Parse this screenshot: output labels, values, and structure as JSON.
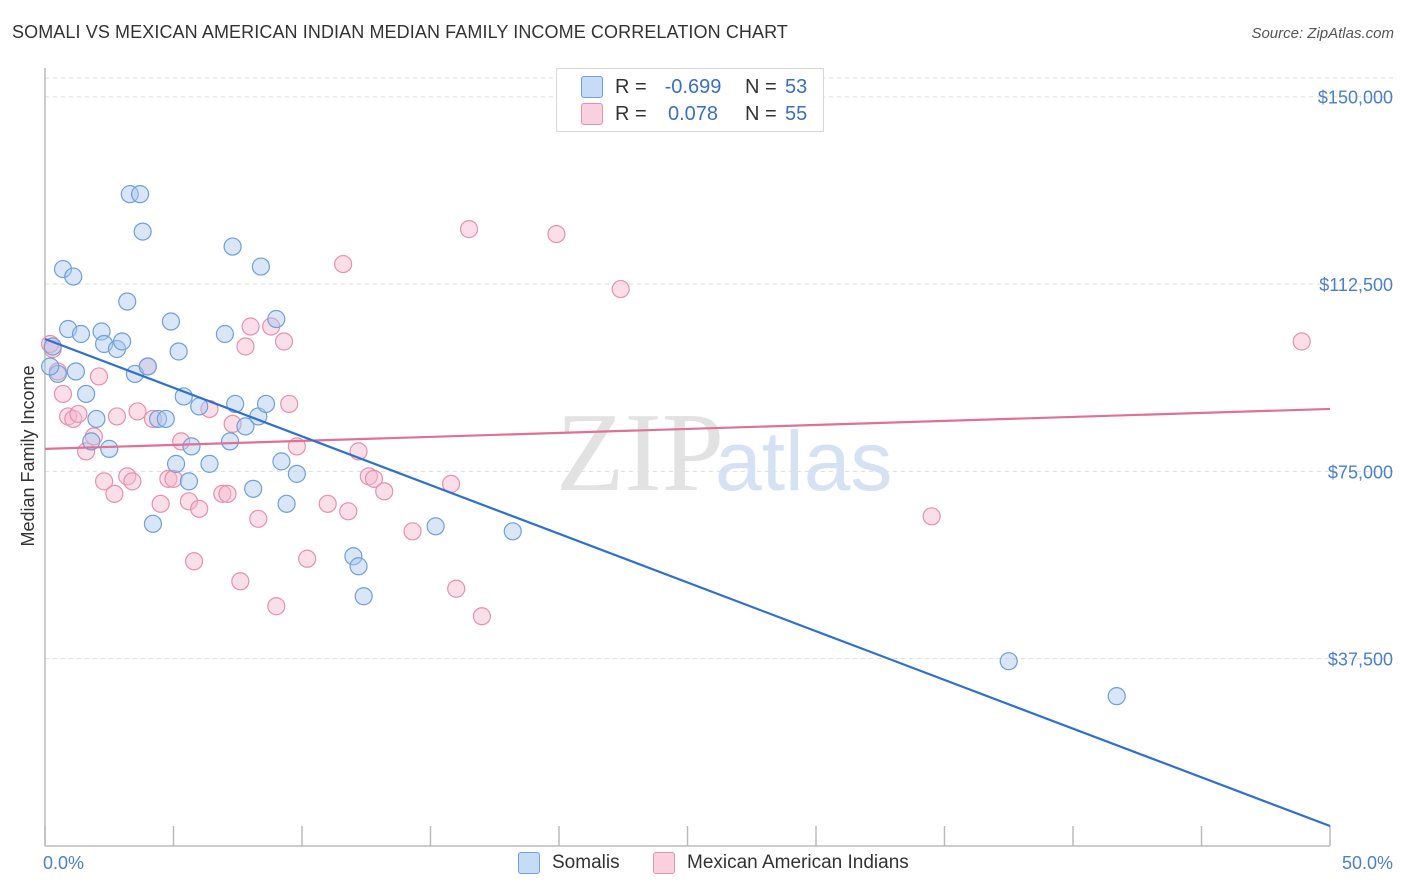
{
  "title": "SOMALI VS MEXICAN AMERICAN INDIAN MEDIAN FAMILY INCOME CORRELATION CHART",
  "source": "Source: ZipAtlas.com",
  "watermark": {
    "zip": "ZIP",
    "atlas": "atlas"
  },
  "legend": {
    "rows": [
      {
        "r_label": "R =",
        "r_value": "-0.699",
        "n_label": "N =",
        "n_value": "53"
      },
      {
        "r_label": "R =",
        "r_value": "0.078",
        "n_label": "N =",
        "n_value": "55"
      }
    ]
  },
  "bottom_legend": {
    "series1": "Somalis",
    "series2": "Mexican American Indians"
  },
  "colors": {
    "somali_fill": "#a8c8f0",
    "somali_stroke": "#6f9fdc",
    "somali_line": "#2f6fd0",
    "mexican_fill": "#f5b8cb",
    "mexican_stroke": "#e890ab",
    "mexican_line": "#e07095",
    "tick_text": "#4a7fd0",
    "grid": "#dddddd"
  },
  "chart_data": {
    "type": "scatter",
    "title": "SOMALI VS MEXICAN AMERICAN INDIAN MEDIAN FAMILY INCOME CORRELATION CHART",
    "xlabel": "",
    "ylabel": "Median Family Income",
    "xlim": [
      0,
      50
    ],
    "ylim": [
      0,
      153750
    ],
    "x_tick_labels": [
      "0.0%",
      "50.0%"
    ],
    "y_ticks": [
      37500,
      75000,
      112500,
      150000
    ],
    "y_tick_labels": [
      "$37,500",
      "$75,000",
      "$112,500",
      "$150,000"
    ],
    "grid": true,
    "legend_position": "top-center",
    "series": [
      {
        "name": "Somalis",
        "trend": {
          "x": [
            0,
            50
          ],
          "y": [
            101500,
            4000
          ]
        },
        "points": [
          [
            0.3,
            100000
          ],
          [
            0.5,
            94500
          ],
          [
            0.7,
            115500
          ],
          [
            0.9,
            103500
          ],
          [
            1.1,
            114000
          ],
          [
            1.2,
            95000
          ],
          [
            1.4,
            102500
          ],
          [
            1.6,
            90500
          ],
          [
            1.8,
            81000
          ],
          [
            2.0,
            85500
          ],
          [
            2.2,
            103000
          ],
          [
            2.3,
            100500
          ],
          [
            2.5,
            79500
          ],
          [
            2.8,
            99500
          ],
          [
            3.0,
            101000
          ],
          [
            3.2,
            109000
          ],
          [
            3.3,
            130500
          ],
          [
            3.5,
            94500
          ],
          [
            3.7,
            130500
          ],
          [
            3.8,
            123000
          ],
          [
            4.0,
            96000
          ],
          [
            4.2,
            64500
          ],
          [
            4.4,
            85500
          ],
          [
            4.7,
            85500
          ],
          [
            4.9,
            105000
          ],
          [
            5.1,
            76500
          ],
          [
            5.2,
            99000
          ],
          [
            5.4,
            90000
          ],
          [
            5.6,
            73000
          ],
          [
            5.7,
            80000
          ],
          [
            6.0,
            88000
          ],
          [
            6.4,
            76500
          ],
          [
            7.0,
            102500
          ],
          [
            7.2,
            81000
          ],
          [
            7.3,
            120000
          ],
          [
            7.4,
            88500
          ],
          [
            7.8,
            84000
          ],
          [
            8.1,
            71500
          ],
          [
            8.3,
            86000
          ],
          [
            8.4,
            116000
          ],
          [
            8.6,
            88500
          ],
          [
            9.0,
            105500
          ],
          [
            9.2,
            77000
          ],
          [
            9.4,
            68500
          ],
          [
            9.8,
            74500
          ],
          [
            12.0,
            58000
          ],
          [
            12.2,
            56000
          ],
          [
            12.4,
            50000
          ],
          [
            15.2,
            64000
          ],
          [
            18.2,
            63000
          ],
          [
            37.5,
            37000
          ],
          [
            41.7,
            30000
          ],
          [
            0.2,
            96000
          ]
        ]
      },
      {
        "name": "Mexican American Indians",
        "trend": {
          "x": [
            0,
            50
          ],
          "y": [
            79500,
            87500
          ]
        },
        "points": [
          [
            0.3,
            99500
          ],
          [
            0.5,
            95000
          ],
          [
            0.7,
            90500
          ],
          [
            0.9,
            86000
          ],
          [
            1.1,
            85500
          ],
          [
            1.3,
            86500
          ],
          [
            1.6,
            79000
          ],
          [
            1.9,
            82000
          ],
          [
            2.1,
            94000
          ],
          [
            2.3,
            73000
          ],
          [
            2.7,
            70500
          ],
          [
            2.8,
            86000
          ],
          [
            3.2,
            74000
          ],
          [
            3.4,
            73000
          ],
          [
            3.6,
            87000
          ],
          [
            4.0,
            96000
          ],
          [
            4.2,
            85500
          ],
          [
            4.5,
            68500
          ],
          [
            4.8,
            73500
          ],
          [
            5.0,
            73500
          ],
          [
            5.3,
            81000
          ],
          [
            5.6,
            69000
          ],
          [
            5.8,
            57000
          ],
          [
            6.0,
            67500
          ],
          [
            6.4,
            87500
          ],
          [
            6.9,
            70500
          ],
          [
            7.1,
            70500
          ],
          [
            7.3,
            84500
          ],
          [
            7.6,
            53000
          ],
          [
            7.8,
            100000
          ],
          [
            8.0,
            104000
          ],
          [
            8.3,
            65500
          ],
          [
            8.8,
            104000
          ],
          [
            9.0,
            48000
          ],
          [
            9.3,
            101000
          ],
          [
            9.5,
            88500
          ],
          [
            9.8,
            80000
          ],
          [
            10.2,
            57500
          ],
          [
            11.0,
            68500
          ],
          [
            11.6,
            116500
          ],
          [
            11.8,
            67000
          ],
          [
            12.2,
            79000
          ],
          [
            12.6,
            74000
          ],
          [
            12.8,
            73500
          ],
          [
            13.2,
            71000
          ],
          [
            14.3,
            63000
          ],
          [
            15.8,
            72500
          ],
          [
            16.0,
            51500
          ],
          [
            16.5,
            123500
          ],
          [
            17.0,
            46000
          ],
          [
            19.9,
            122500
          ],
          [
            22.4,
            111500
          ],
          [
            34.5,
            66000
          ],
          [
            48.9,
            101000
          ],
          [
            0.2,
            100500
          ]
        ]
      }
    ]
  }
}
